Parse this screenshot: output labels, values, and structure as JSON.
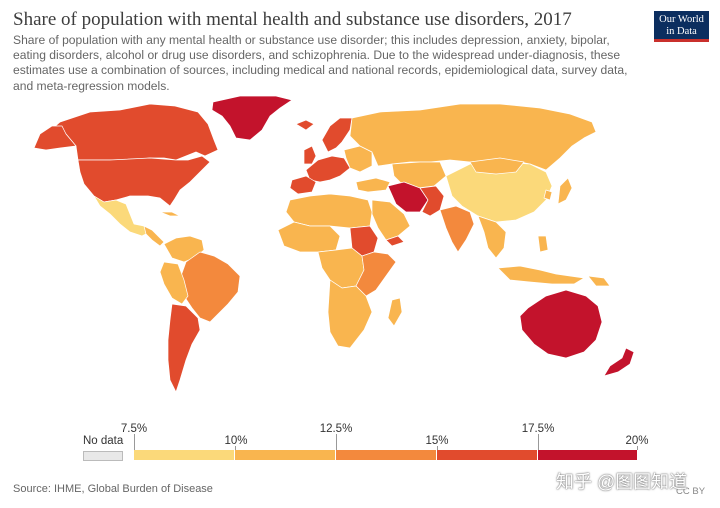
{
  "title": "Share of population with mental health and substance use disorders, 2017",
  "subtitle": "Share of population with any mental health or substance use disorder; this includes depression, anxiety, bipolar, eating disorders, alcohol or drug use disorders, and schizophrenia. Due to the widespread under-diagnosis, these estimates use a combination of sources, including medical and national records, epidemiological data, survey data, and meta-regression models.",
  "logo": {
    "line1": "Our World",
    "line2": "in Data"
  },
  "legend": {
    "no_data_label": "No data",
    "ticks": [
      "7.5%",
      "10%",
      "12.5%",
      "15%",
      "17.5%",
      "20%"
    ],
    "tick_values": [
      7.5,
      10,
      12.5,
      15,
      17.5,
      20
    ],
    "bins": [
      {
        "from": 7.5,
        "to": 10,
        "color": "#fbd97a"
      },
      {
        "from": 10,
        "to": 12.5,
        "color": "#f9b54f"
      },
      {
        "from": 12.5,
        "to": 15,
        "color": "#f3893d"
      },
      {
        "from": 15,
        "to": 17.5,
        "color": "#e14b2d"
      },
      {
        "from": 17.5,
        "to": 20,
        "color": "#c3132c"
      }
    ],
    "no_data_color": "#e8e8e8"
  },
  "map": {
    "ocean_color": "#ffffff",
    "border_color": "#ffffff"
  },
  "source": "Source: IHME, Global Burden of Disease",
  "license": "CC BY",
  "watermark": "知乎 @图图知道"
}
